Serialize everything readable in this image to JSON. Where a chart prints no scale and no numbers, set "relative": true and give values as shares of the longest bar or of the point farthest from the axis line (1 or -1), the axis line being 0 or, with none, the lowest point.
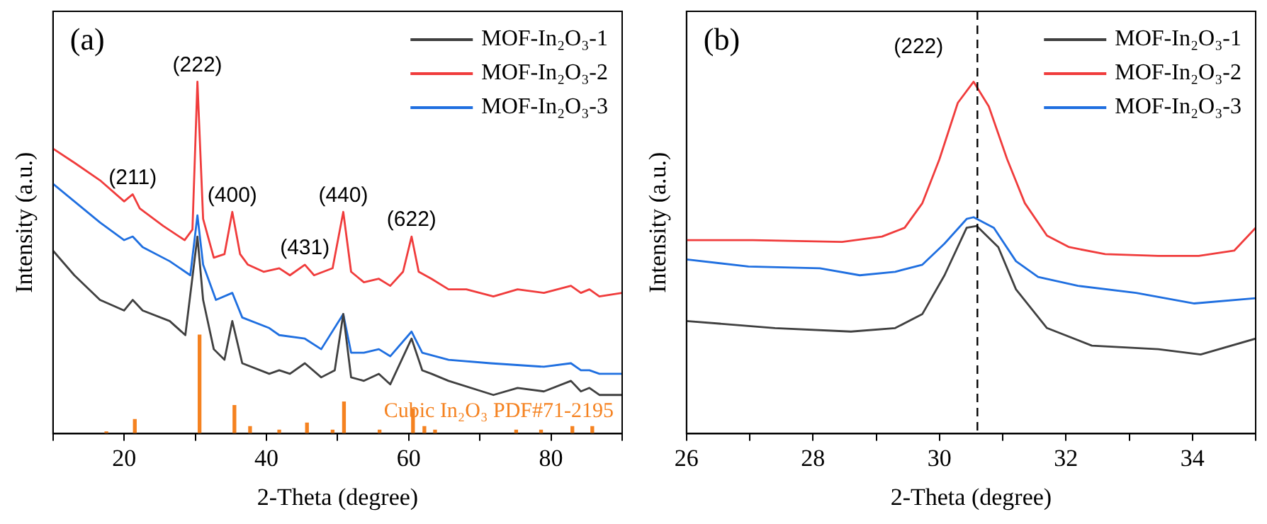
{
  "chart_data": [
    {
      "type": "line",
      "relative": true,
      "xlabel": "2-Theta (degree)",
      "ylabel": "Intensity (a.u.)",
      "xlim": [
        10,
        90
      ],
      "xticks": [
        {
          "value": 10,
          "label": null
        },
        20,
        {
          "value": 30,
          "label": null
        },
        40,
        {
          "value": 50,
          "label": null
        },
        60,
        {
          "value": 70,
          "label": null
        },
        80,
        {
          "value": 90,
          "label": null
        }
      ],
      "legend": "top right",
      "annotations": [
        "(a)",
        {
          "text": "(211)",
          "x": 21.2,
          "y": 0.68
        },
        {
          "text": "(222)",
          "x": 30.3,
          "y": 1.0
        },
        {
          "text": "(400)",
          "x": 35.2,
          "y": 0.63
        },
        {
          "text": "(431)",
          "x": 45.4,
          "y": 0.48
        },
        {
          "text": "(440)",
          "x": 50.8,
          "y": 0.63
        },
        {
          "text": "(622)",
          "x": 60.4,
          "y": 0.56
        }
      ],
      "series": [
        {
          "name": "MOF-In₂O₃-1",
          "color": "#404040",
          "x": [
            10,
            13,
            16.6,
            20,
            21.2,
            22.6,
            26.4,
            28.6,
            30.3,
            31.1,
            32.6,
            34.1,
            35.2,
            36.6,
            40.4,
            41.8,
            43.3,
            45.4,
            47.7,
            49.6,
            50.8,
            51.9,
            53.7,
            55.8,
            57.4,
            60.4,
            61.9,
            63.2,
            65.6,
            71.9,
            75.3,
            79,
            82.8,
            84.2,
            85.4,
            86.8,
            90
          ],
          "values": [
            0.52,
            0.45,
            0.38,
            0.35,
            0.38,
            0.35,
            0.32,
            0.28,
            0.56,
            0.38,
            0.24,
            0.21,
            0.32,
            0.2,
            0.17,
            0.18,
            0.17,
            0.2,
            0.16,
            0.18,
            0.34,
            0.16,
            0.15,
            0.17,
            0.14,
            0.27,
            0.18,
            0.17,
            0.15,
            0.11,
            0.13,
            0.12,
            0.15,
            0.12,
            0.13,
            0.11,
            0.11
          ]
        },
        {
          "name": "MOF-In₂O₃-2",
          "color": "#f03c3c",
          "x": [
            10,
            13,
            16.6,
            20,
            21.2,
            22.2,
            25.5,
            28.5,
            29.6,
            30.3,
            31.1,
            32.6,
            34.1,
            35.2,
            36.3,
            37.4,
            39.6,
            41.8,
            43.3,
            45.4,
            46.7,
            49.3,
            50.8,
            51.9,
            53.7,
            55.8,
            57.4,
            59.2,
            60.4,
            61.4,
            63.2,
            65.6,
            68.1,
            71.9,
            75.3,
            79,
            82.8,
            84.2,
            85.4,
            86.8,
            90
          ],
          "values": [
            0.81,
            0.77,
            0.72,
            0.66,
            0.68,
            0.64,
            0.59,
            0.55,
            0.58,
            1.0,
            0.61,
            0.5,
            0.51,
            0.63,
            0.51,
            0.48,
            0.46,
            0.47,
            0.45,
            0.48,
            0.45,
            0.47,
            0.63,
            0.46,
            0.43,
            0.44,
            0.42,
            0.46,
            0.56,
            0.46,
            0.44,
            0.41,
            0.41,
            0.39,
            0.41,
            0.4,
            0.42,
            0.4,
            0.41,
            0.39,
            0.4
          ]
        },
        {
          "name": "MOF-In₂O₃-3",
          "color": "#1f6fe0",
          "x": [
            10,
            13,
            16.6,
            20,
            21.2,
            22.6,
            26.4,
            29.3,
            30.3,
            31.1,
            32.9,
            35.2,
            36.6,
            40.4,
            41.8,
            45.4,
            47.7,
            50.8,
            51.9,
            53.7,
            55.8,
            57.4,
            60.4,
            61.9,
            65.6,
            71.5,
            79,
            82.8,
            84.2,
            85.4,
            86.8,
            90
          ],
          "values": [
            0.71,
            0.66,
            0.6,
            0.55,
            0.56,
            0.53,
            0.49,
            0.45,
            0.62,
            0.48,
            0.38,
            0.4,
            0.33,
            0.3,
            0.28,
            0.27,
            0.24,
            0.34,
            0.23,
            0.23,
            0.24,
            0.22,
            0.29,
            0.23,
            0.21,
            0.2,
            0.19,
            0.2,
            0.18,
            0.18,
            0.17,
            0.17
          ]
        },
        {
          "type": "bar",
          "name": "Cubic In₂O₃ PDF#71-2195",
          "color": "#f58220",
          "x": [
            17.5,
            21.5,
            30.6,
            35.5,
            37.7,
            41.8,
            45.7,
            49.3,
            50.9,
            55.9,
            60.6,
            62.2,
            63.7,
            75.1,
            78.6,
            83,
            85.8
          ],
          "values": [
            0.005,
            0.04,
            0.28,
            0.08,
            0.02,
            0.01,
            0.03,
            0.01,
            0.09,
            0.01,
            0.07,
            0.02,
            0.01,
            0.01,
            0.01,
            0.02,
            0.02
          ]
        }
      ]
    },
    {
      "type": "line",
      "relative": true,
      "xlabel": "2-Theta (degree)",
      "ylabel": "Intensity (a.u.)",
      "xlim": [
        26,
        35
      ],
      "xticks": [
        26,
        {
          "value": 27,
          "label": null
        },
        28,
        {
          "value": 29,
          "label": null
        },
        30,
        {
          "value": 31,
          "label": null
        },
        32,
        {
          "value": 33,
          "label": null
        },
        34,
        {
          "value": 35,
          "label": null
        }
      ],
      "legend": "top right",
      "annotations": [
        "(b)",
        {
          "text": "(222)",
          "x": 30.6
        }
      ],
      "ref_lines": [
        {
          "axis": "x",
          "value": 30.6,
          "color": "#000000",
          "line_style": "dashed"
        }
      ],
      "series": [
        {
          "name": "MOF-In₂O₃-1",
          "color": "#404040",
          "x": [
            26,
            27.4,
            28.6,
            29.3,
            29.73,
            30.08,
            30.43,
            30.59,
            30.93,
            31.21,
            31.7,
            32.41,
            33.46,
            34.13,
            35
          ],
          "values": [
            0.32,
            0.3,
            0.29,
            0.3,
            0.34,
            0.45,
            0.585,
            0.59,
            0.53,
            0.41,
            0.3,
            0.25,
            0.24,
            0.225,
            0.27
          ]
        },
        {
          "name": "MOF-In₂O₃-2",
          "color": "#f03c3c",
          "x": [
            26,
            27.05,
            28.46,
            29.09,
            29.45,
            29.73,
            30,
            30.29,
            30.54,
            30.78,
            31.07,
            31.35,
            31.7,
            32.05,
            32.62,
            33.46,
            34.1,
            34.66,
            35
          ],
          "values": [
            0.55,
            0.55,
            0.545,
            0.56,
            0.585,
            0.655,
            0.78,
            0.94,
            1.0,
            0.93,
            0.78,
            0.655,
            0.5625,
            0.53,
            0.51,
            0.505,
            0.505,
            0.52,
            0.585
          ]
        },
        {
          "name": "MOF-In₂O₃-3",
          "color": "#1f6fe0",
          "x": [
            26,
            26.98,
            28.11,
            28.74,
            29.3,
            29.73,
            30.08,
            30.43,
            30.54,
            30.86,
            31.21,
            31.56,
            32.19,
            33.11,
            34.03,
            35
          ],
          "values": [
            0.495,
            0.475,
            0.47,
            0.45,
            0.46,
            0.48,
            0.54,
            0.61,
            0.615,
            0.585,
            0.49,
            0.445,
            0.42,
            0.4,
            0.37,
            0.385
          ]
        }
      ]
    }
  ]
}
